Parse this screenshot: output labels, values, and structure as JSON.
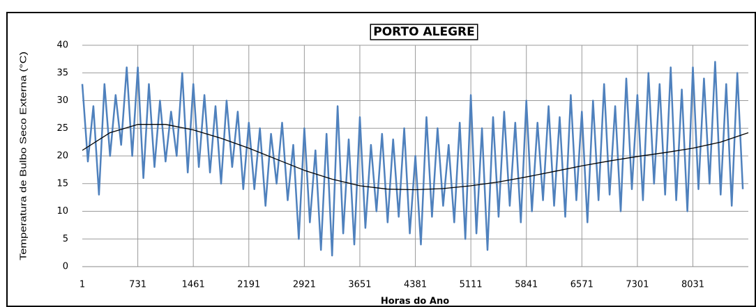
{
  "chart_data": {
    "type": "line",
    "title": "PORTO ALEGRE",
    "x_label": "Horas do Ano",
    "y_label": "Temperatura de Bulbo Seco Externa (°C)",
    "xlim": [
      1,
      8760
    ],
    "xticks": [
      1,
      731,
      1461,
      2191,
      2921,
      3651,
      4381,
      5111,
      5841,
      6571,
      7301,
      8031
    ],
    "ylim": [
      0,
      40
    ],
    "yticks": [
      0,
      5,
      10,
      15,
      20,
      25,
      30,
      35,
      40
    ],
    "grid": true,
    "series": [
      {
        "color": "#4f81bd",
        "x": [
          1,
          74,
          147,
          220,
          293,
          366,
          439,
          512,
          585,
          658,
          731,
          804,
          877,
          950,
          1023,
          1096,
          1169,
          1242,
          1315,
          1388,
          1461,
          1534,
          1607,
          1680,
          1753,
          1826,
          1899,
          1972,
          2045,
          2118,
          2191,
          2264,
          2337,
          2410,
          2483,
          2556,
          2629,
          2702,
          2775,
          2848,
          2921,
          2994,
          3067,
          3140,
          3213,
          3286,
          3359,
          3432,
          3505,
          3578,
          3651,
          3724,
          3797,
          3870,
          3943,
          4016,
          4089,
          4162,
          4235,
          4308,
          4381,
          4454,
          4527,
          4600,
          4673,
          4746,
          4819,
          4892,
          4965,
          5038,
          5111,
          5184,
          5257,
          5330,
          5403,
          5476,
          5549,
          5622,
          5695,
          5768,
          5841,
          5914,
          5987,
          6060,
          6133,
          6206,
          6279,
          6352,
          6425,
          6498,
          6571,
          6644,
          6717,
          6790,
          6863,
          6936,
          7009,
          7082,
          7155,
          7228,
          7301,
          7374,
          7447,
          7520,
          7593,
          7666,
          7739,
          7812,
          7885,
          7958,
          8031,
          8104,
          8177,
          8250,
          8323,
          8396,
          8469,
          8542,
          8615,
          8688
        ],
        "values": [
          33,
          19,
          29,
          13,
          33,
          20,
          31,
          22,
          36,
          20,
          36,
          16,
          33,
          18,
          30,
          19,
          28,
          20,
          35,
          17,
          33,
          18,
          31,
          17,
          29,
          15,
          30,
          18,
          28,
          14,
          26,
          14,
          25,
          11,
          24,
          15,
          26,
          12,
          22,
          5,
          25,
          8,
          21,
          3,
          24,
          2,
          29,
          6,
          23,
          4,
          27,
          7,
          22,
          10,
          24,
          8,
          23,
          9,
          25,
          6,
          20,
          4,
          27,
          9,
          25,
          11,
          22,
          8,
          26,
          5,
          31,
          6,
          25,
          3,
          27,
          9,
          28,
          11,
          26,
          8,
          30,
          10,
          26,
          12,
          29,
          11,
          27,
          9,
          31,
          12,
          28,
          8,
          30,
          12,
          33,
          13,
          29,
          10,
          34,
          14,
          31,
          12,
          35,
          15,
          33,
          13,
          36,
          12,
          32,
          10,
          36,
          14,
          34,
          15,
          37,
          13,
          33,
          11,
          35,
          14
        ]
      },
      {
        "color": "#000000",
        "x": [
          1,
          366,
          731,
          1096,
          1461,
          1826,
          2191,
          2556,
          2921,
          3286,
          3651,
          4016,
          4381,
          4746,
          5111,
          5476,
          5841,
          6206,
          6571,
          6936,
          7301,
          7666,
          8031,
          8396,
          8760
        ],
        "values": [
          21,
          24.2,
          25.7,
          25.7,
          24.7,
          23.2,
          21.4,
          19.4,
          17.4,
          15.8,
          14.6,
          14.0,
          13.9,
          14.1,
          14.6,
          15.3,
          16.2,
          17.2,
          18.2,
          19.1,
          19.9,
          20.6,
          21.4,
          22.5,
          24.2
        ]
      }
    ]
  }
}
